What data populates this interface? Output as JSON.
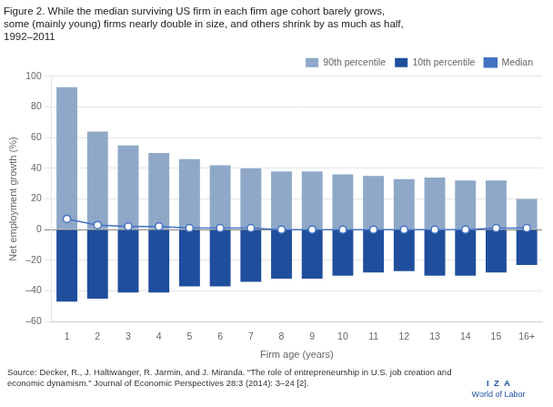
{
  "chart_data": {
    "type": "bar",
    "title": [
      "Figure 2. While the median surviving US firm in each firm age cohort barely grows,",
      "some (mainly young) firms nearly double in size, and others shrink by as much as half,",
      "1992–2011"
    ],
    "xlabel": "Firm age (years)",
    "ylabel": "Net employment growth (%)",
    "categories": [
      "1",
      "2",
      "3",
      "4",
      "5",
      "6",
      "7",
      "8",
      "9",
      "10",
      "11",
      "12",
      "13",
      "14",
      "15",
      "16+"
    ],
    "series": [
      {
        "name": "90th percentile",
        "type": "bar",
        "color": "#8FA8C8",
        "values": [
          93,
          64,
          55,
          50,
          46,
          42,
          40,
          38,
          38,
          36,
          35,
          33,
          34,
          32,
          32,
          20
        ]
      },
      {
        "name": "10th percentile",
        "type": "bar",
        "color": "#1F4E9C",
        "values": [
          -47,
          -45,
          -41,
          -41,
          -37,
          -37,
          -34,
          -32,
          -32,
          -30,
          -28,
          -27,
          -30,
          -30,
          -28,
          -23
        ]
      },
      {
        "name": "Median",
        "type": "line",
        "color": "#4472C4",
        "marker": "circle",
        "line_style": "solid",
        "values": [
          7,
          3,
          2,
          2,
          1,
          1,
          1,
          0,
          0,
          0,
          0,
          0,
          0,
          0,
          1,
          1
        ]
      }
    ],
    "ylim": [
      -60,
      100
    ],
    "yticks": [
      {
        "value": -60,
        "label": "–60"
      },
      {
        "value": -40,
        "label": "–40"
      },
      {
        "value": -20,
        "label": "–20"
      },
      0,
      20,
      40,
      60,
      80,
      100
    ],
    "grid": "y",
    "legend": "upper right",
    "annotations": [
      {
        "text": "Source: Decker, R., J. Haltiwanger, R. Jarmin, and J. Miranda. “The role of entrepreneurship in U.S. job creation and"
      },
      {
        "text": "economic dynamism.” Journal of Economic Perspectives 28:3 (2014): 3–24 [2]."
      },
      {
        "text": "I  Z  A",
        "color": "#1F4E9C"
      },
      {
        "text": "World of Labor",
        "color": "#1F4E9C"
      }
    ]
  }
}
